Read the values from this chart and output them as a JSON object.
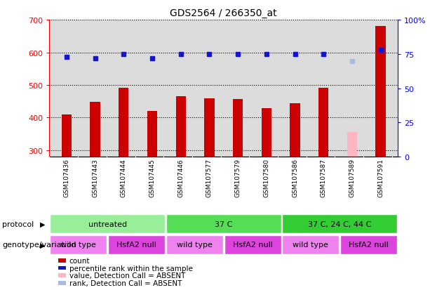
{
  "title": "GDS2564 / 266350_at",
  "samples": [
    "GSM107436",
    "GSM107443",
    "GSM107444",
    "GSM107445",
    "GSM107446",
    "GSM107577",
    "GSM107579",
    "GSM107580",
    "GSM107586",
    "GSM107587",
    "GSM107589",
    "GSM107591"
  ],
  "counts": [
    410,
    448,
    492,
    420,
    465,
    459,
    458,
    428,
    444,
    492,
    355,
    681
  ],
  "count_absent": [
    false,
    false,
    false,
    false,
    false,
    false,
    false,
    false,
    false,
    false,
    true,
    false
  ],
  "percentile_ranks": [
    73,
    72,
    75,
    72,
    75,
    75,
    75,
    75,
    75,
    75,
    70,
    78
  ],
  "rank_absent": [
    false,
    false,
    false,
    false,
    false,
    false,
    false,
    false,
    false,
    false,
    true,
    false
  ],
  "ylim_left": [
    280,
    700
  ],
  "ylim_right": [
    0,
    100
  ],
  "yticks_left": [
    300,
    400,
    500,
    600,
    700
  ],
  "yticks_right": [
    0,
    25,
    50,
    75,
    100
  ],
  "bar_color_normal": "#CC0000",
  "bar_color_absent": "#FFB6C1",
  "dot_color_normal": "#1515CC",
  "dot_color_absent": "#AABBDD",
  "protocol_groups": [
    {
      "label": "untreated",
      "start": 0,
      "end": 4,
      "color": "#99EE99"
    },
    {
      "label": "37 C",
      "start": 4,
      "end": 8,
      "color": "#55DD55"
    },
    {
      "label": "37 C, 24 C, 44 C",
      "start": 8,
      "end": 12,
      "color": "#33CC33"
    }
  ],
  "genotype_groups": [
    {
      "label": "wild type",
      "start": 0,
      "end": 2,
      "color": "#EE82EE"
    },
    {
      "label": "HsfA2 null",
      "start": 2,
      "end": 4,
      "color": "#DD44DD"
    },
    {
      "label": "wild type",
      "start": 4,
      "end": 6,
      "color": "#EE82EE"
    },
    {
      "label": "HsfA2 null",
      "start": 6,
      "end": 8,
      "color": "#DD44DD"
    },
    {
      "label": "wild type",
      "start": 8,
      "end": 10,
      "color": "#EE82EE"
    },
    {
      "label": "HsfA2 null",
      "start": 10,
      "end": 12,
      "color": "#DD44DD"
    }
  ],
  "protocol_label": "protocol",
  "genotype_label": "genotype/variation",
  "legend_items": [
    {
      "label": "count",
      "color": "#CC0000"
    },
    {
      "label": "percentile rank within the sample",
      "color": "#1515CC"
    },
    {
      "label": "value, Detection Call = ABSENT",
      "color": "#FFB6C1"
    },
    {
      "label": "rank, Detection Call = ABSENT",
      "color": "#AABBDD"
    }
  ],
  "label_bg_color": "#C8C8C8",
  "plot_bg": "#DCDCDC",
  "fig_bg": "#FFFFFF",
  "bar_width": 0.35
}
